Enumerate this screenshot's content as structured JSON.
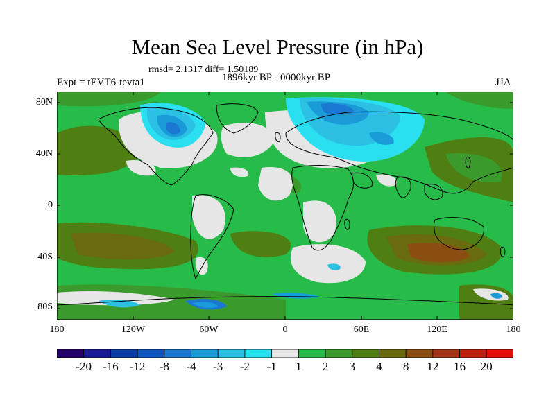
{
  "title": "Mean Sea Level Pressure (in hPa)",
  "stats": "rmsd= 2.1317  diff= 1.50189",
  "experiment": "Expt = tEVT6-tevta1",
  "period": "1896kyr BP - 0000kyr BP",
  "season": "JJA",
  "lat_labels": [
    "80N",
    "40N",
    "0",
    "40S",
    "80S"
  ],
  "lon_labels": [
    "180",
    "120W",
    "60W",
    "0",
    "60E",
    "120E",
    "180"
  ],
  "colorbar": {
    "labels": [
      "-20",
      "-16",
      "-12",
      "-8",
      "-4",
      "-3",
      "-2",
      "-1",
      "1",
      "2",
      "3",
      "4",
      "8",
      "12",
      "16",
      "20"
    ],
    "colors": [
      "#24006c",
      "#1a1a99",
      "#0a3ca8",
      "#0e55c0",
      "#1a78d2",
      "#1b9ad8",
      "#2bc0e4",
      "#2ae0f0",
      "#e6e6e6",
      "#27bb4a",
      "#3a9a2c",
      "#4f7e12",
      "#6a6a0e",
      "#8a4e12",
      "#a53518",
      "#c0200e",
      "#e0120a"
    ]
  },
  "fields": {
    "background": "#27bb4a",
    "land_outline": "#000000",
    "ocean_low": "#e6e6e6",
    "high_moderate": "#3a9a2c",
    "high_strong": "#4f7e12",
    "high_stronger": "#6a6a0e",
    "high_max": "#8a4e12",
    "low_1": "#2ae0f0",
    "low_2": "#2bc0e4",
    "low_3": "#1b9ad8",
    "low_4": "#1a78d2"
  }
}
